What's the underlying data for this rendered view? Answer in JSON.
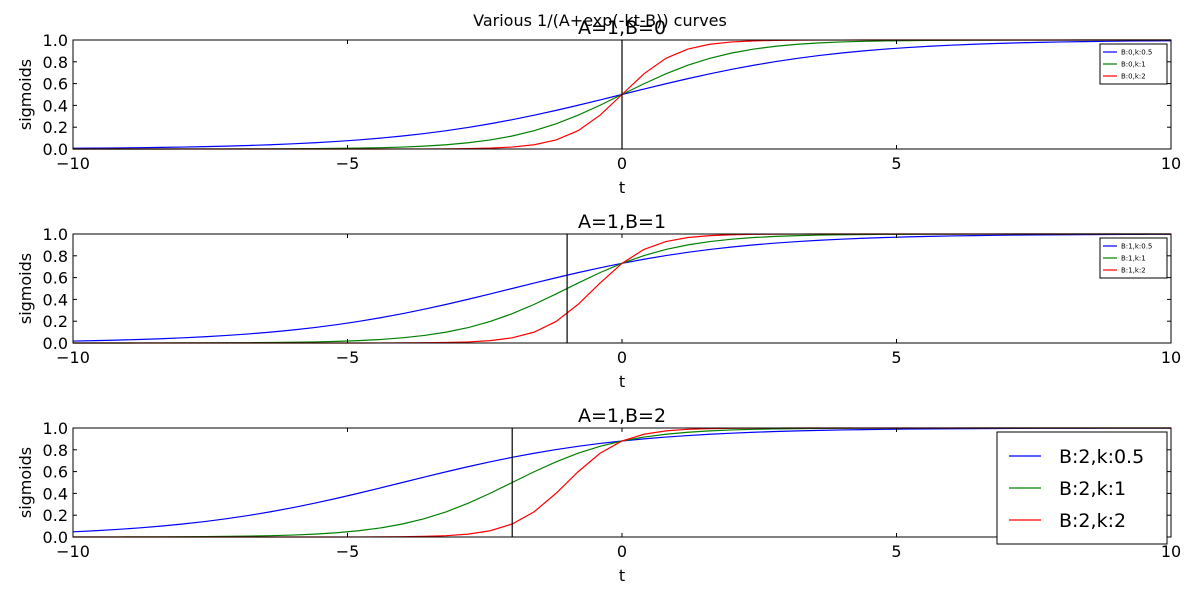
{
  "suptitle": "Various 1/(A+exp(-kt-B)) curves",
  "chart_data": [
    {
      "type": "line",
      "title": "A=1,B=0",
      "xlabel": "t",
      "ylabel": "sigmoids",
      "xlim": [
        -10,
        10
      ],
      "ylim": [
        0,
        1
      ],
      "x_ticks": [
        "−10",
        "−5",
        "0",
        "5",
        "10"
      ],
      "y_ticks": [
        "0.0",
        "0.2",
        "0.4",
        "0.6",
        "0.8",
        "1.0"
      ],
      "vline_x": 0,
      "legend_position": "top-right",
      "legend_size": "small",
      "A": 1,
      "B": 0,
      "x": [
        -10,
        -9.6,
        -9.2,
        -8.8,
        -8.4,
        -8,
        -7.6,
        -7.2,
        -6.8,
        -6.4,
        -6,
        -5.6,
        -5.2,
        -4.8,
        -4.4,
        -4,
        -3.6,
        -3.2,
        -2.8,
        -2.4,
        -2,
        -1.6,
        -1.2,
        -0.8,
        -0.4,
        0,
        0.4,
        0.8,
        1.2,
        1.6,
        2,
        2.4,
        2.8,
        3.2,
        3.6,
        4,
        4.4,
        4.8,
        5.2,
        5.6,
        6,
        6.4,
        6.8,
        7.2,
        7.6,
        8,
        8.4,
        8.8,
        9.2,
        9.6,
        10
      ],
      "series": [
        {
          "name": "B:0,k:0.5",
          "k": 0.5,
          "color": "#0000ff"
        },
        {
          "name": "B:0,k:1",
          "k": 1,
          "color": "#008000"
        },
        {
          "name": "B:0,k:2",
          "k": 2,
          "color": "#ff0000"
        }
      ]
    },
    {
      "type": "line",
      "title": "A=1,B=1",
      "xlabel": "t",
      "ylabel": "sigmoids",
      "xlim": [
        -10,
        10
      ],
      "ylim": [
        0,
        1
      ],
      "x_ticks": [
        "−10",
        "−5",
        "0",
        "5",
        "10"
      ],
      "y_ticks": [
        "0.0",
        "0.2",
        "0.4",
        "0.6",
        "0.8",
        "1.0"
      ],
      "vline_x": -1,
      "legend_position": "top-right",
      "legend_size": "small",
      "A": 1,
      "B": 1,
      "x": [
        -10,
        -9.6,
        -9.2,
        -8.8,
        -8.4,
        -8,
        -7.6,
        -7.2,
        -6.8,
        -6.4,
        -6,
        -5.6,
        -5.2,
        -4.8,
        -4.4,
        -4,
        -3.6,
        -3.2,
        -2.8,
        -2.4,
        -2,
        -1.6,
        -1.2,
        -0.8,
        -0.4,
        0,
        0.4,
        0.8,
        1.2,
        1.6,
        2,
        2.4,
        2.8,
        3.2,
        3.6,
        4,
        4.4,
        4.8,
        5.2,
        5.6,
        6,
        6.4,
        6.8,
        7.2,
        7.6,
        8,
        8.4,
        8.8,
        9.2,
        9.6,
        10
      ],
      "series": [
        {
          "name": "B:1,k:0.5",
          "k": 0.5,
          "color": "#0000ff"
        },
        {
          "name": "B:1,k:1",
          "k": 1,
          "color": "#008000"
        },
        {
          "name": "B:1,k:2",
          "k": 2,
          "color": "#ff0000"
        }
      ]
    },
    {
      "type": "line",
      "title": "A=1,B=2",
      "xlabel": "t",
      "ylabel": "sigmoids",
      "xlim": [
        -10,
        10
      ],
      "ylim": [
        0,
        1
      ],
      "x_ticks": [
        "−10",
        "−5",
        "0",
        "5",
        "10"
      ],
      "y_ticks": [
        "0.0",
        "0.2",
        "0.4",
        "0.6",
        "0.8",
        "1.0"
      ],
      "vline_x": -2,
      "legend_position": "top-right",
      "legend_size": "large",
      "A": 1,
      "B": 2,
      "x": [
        -10,
        -9.6,
        -9.2,
        -8.8,
        -8.4,
        -8,
        -7.6,
        -7.2,
        -6.8,
        -6.4,
        -6,
        -5.6,
        -5.2,
        -4.8,
        -4.4,
        -4,
        -3.6,
        -3.2,
        -2.8,
        -2.4,
        -2,
        -1.6,
        -1.2,
        -0.8,
        -0.4,
        0,
        0.4,
        0.8,
        1.2,
        1.6,
        2,
        2.4,
        2.8,
        3.2,
        3.6,
        4,
        4.4,
        4.8,
        5.2,
        5.6,
        6,
        6.4,
        6.8,
        7.2,
        7.6,
        8,
        8.4,
        8.8,
        9.2,
        9.6,
        10
      ],
      "series": [
        {
          "name": "B:2,k:0.5",
          "k": 0.5,
          "color": "#0000ff"
        },
        {
          "name": "B:2,k:1",
          "k": 1,
          "color": "#008000"
        },
        {
          "name": "B:2,k:2",
          "k": 2,
          "color": "#ff0000"
        }
      ]
    }
  ]
}
